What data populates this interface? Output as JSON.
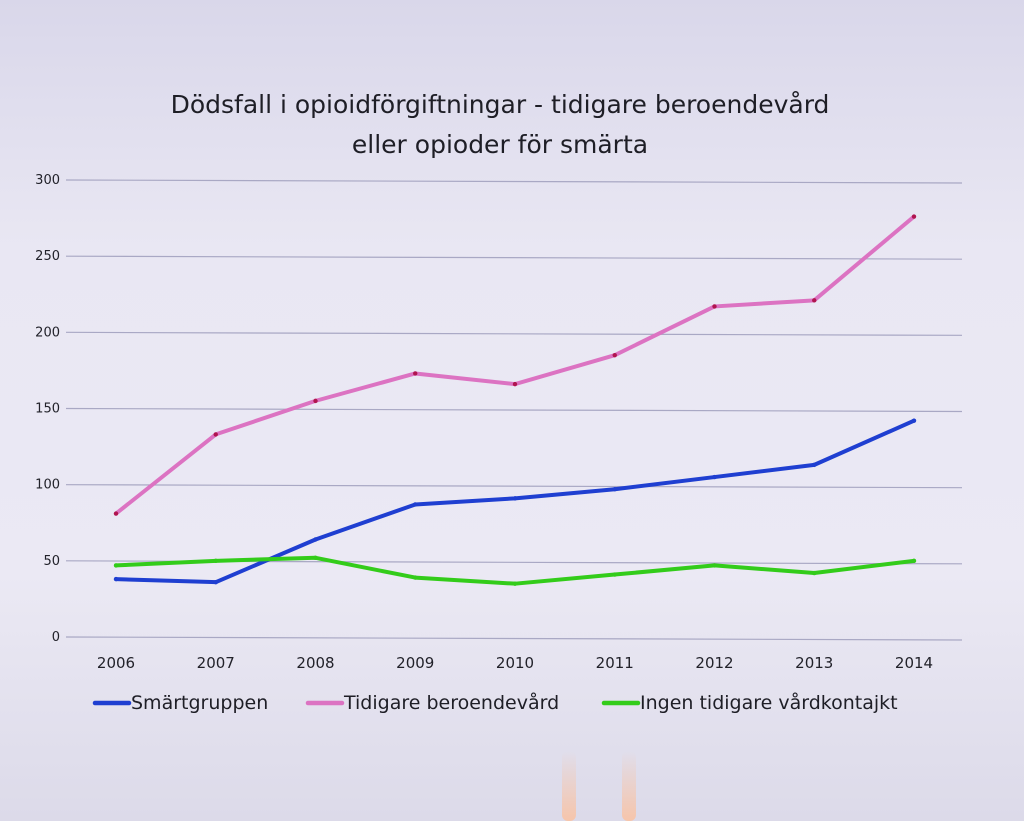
{
  "chart_data": {
    "type": "line",
    "title_line1": "Dödsfall i opioidförgiftningar - tidigare beroendevård",
    "title_line2": "eller opioder för smärta",
    "xlabel": "",
    "ylabel": "",
    "categories": [
      "2006",
      "2007",
      "2008",
      "2009",
      "2010",
      "2011",
      "2012",
      "2013",
      "2014"
    ],
    "yticks": [
      "0",
      "50",
      "100",
      "150",
      "200",
      "250",
      "300"
    ],
    "ylim": [
      0,
      300
    ],
    "grid": true,
    "legend_position": "bottom",
    "series": [
      {
        "name": "Smärtgruppen",
        "color": "#1f3fd1",
        "values": [
          38,
          36,
          64,
          87,
          91,
          97,
          105,
          113,
          142
        ]
      },
      {
        "name": "Tidigare beroendevård",
        "color": "#dc73c2",
        "values": [
          81,
          133,
          155,
          173,
          166,
          185,
          217,
          221,
          276
        ]
      },
      {
        "name": "Ingen tidigare vårdkontajkt",
        "color": "#33cc1a",
        "values": [
          47,
          50,
          52,
          39,
          35,
          41,
          47,
          42,
          50
        ]
      }
    ]
  }
}
